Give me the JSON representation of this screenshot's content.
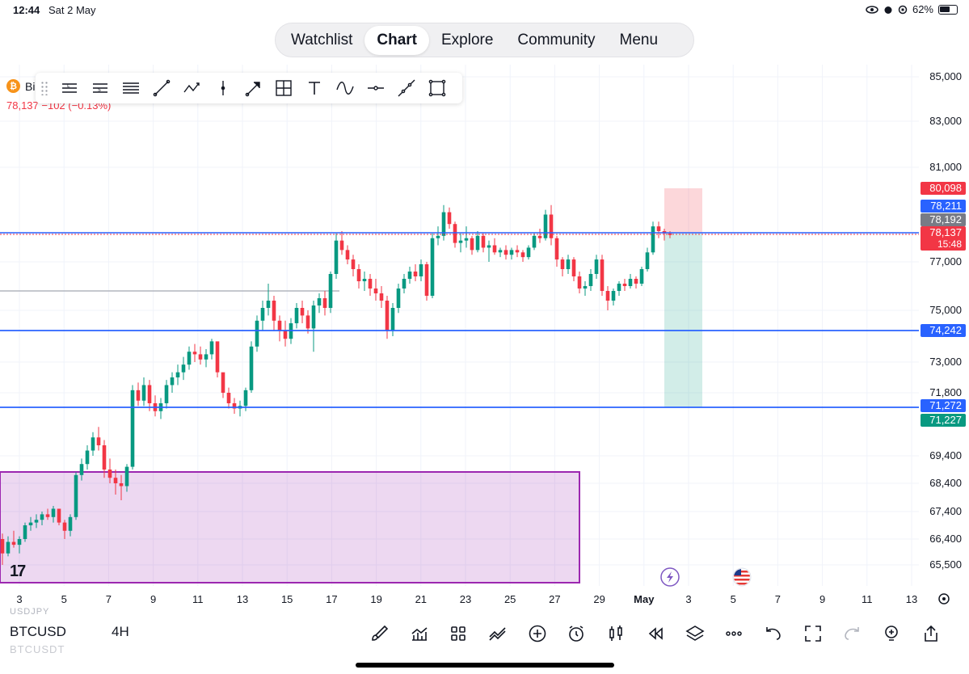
{
  "status_bar": {
    "time": "12:44",
    "date": "Sat 2 May",
    "battery": "62%"
  },
  "nav": {
    "tabs": [
      {
        "label": "Watchlist",
        "active": false
      },
      {
        "label": "Chart",
        "active": true
      },
      {
        "label": "Explore",
        "active": false
      },
      {
        "label": "Community",
        "active": false
      },
      {
        "label": "Menu",
        "active": false
      }
    ]
  },
  "symbol_header": {
    "name": "Bi",
    "price_change": "78,137 −102 (−0.13%)"
  },
  "drawing_tools": [
    "long-position-icon",
    "short-position-icon",
    "horizontal-lines-icon",
    "trend-line-icon",
    "path-icon",
    "vertical-line-icon",
    "arrow-icon",
    "cross-line-icon",
    "text-icon",
    "curve-icon",
    "horizontal-ray-icon",
    "extended-line-icon",
    "rectangle-icon"
  ],
  "bottom_bar": {
    "symbol": "BTCUSD",
    "interval": "4H",
    "ghost_top": "USDJPY",
    "ghost_bottom": "BTCUSDT",
    "tools": [
      "brush-icon",
      "indicators-icon",
      "templates-icon",
      "compare-icon",
      "add-icon",
      "alert-icon",
      "candle-type-icon",
      "replay-icon",
      "layers-icon",
      "more-icon",
      "undo-icon",
      "fullscreen-icon",
      "redo-icon",
      "object-tree-icon",
      "share-icon"
    ]
  },
  "chart_data": {
    "type": "candlestick",
    "symbol": "BTCUSD",
    "interval": "4H",
    "y_axis_ticks": [
      "85,000",
      "83,000",
      "81,000",
      "77,000",
      "75,000",
      "73,000",
      "71,800",
      "69,400",
      "68,400",
      "67,400",
      "66,400",
      "65,500"
    ],
    "x_axis_ticks": [
      "3",
      "5",
      "7",
      "9",
      "11",
      "13",
      "15",
      "17",
      "19",
      "21",
      "23",
      "25",
      "27",
      "29",
      "May",
      "3",
      "5",
      "7",
      "9",
      "11",
      "13"
    ],
    "price_labels": [
      {
        "value": "80,098",
        "color": "#f23645"
      },
      {
        "value": "78,211",
        "color": "#2962ff"
      },
      {
        "value": "78,192",
        "color": "#787b86"
      },
      {
        "value": "78,137",
        "countdown": "15:48",
        "color": "#f23645"
      },
      {
        "value": "74,242",
        "color": "#2962ff"
      },
      {
        "value": "71,272",
        "color": "#2962ff"
      },
      {
        "value": "71,227",
        "color": "#089981"
      }
    ],
    "horizontal_lines": [
      78211,
      74242,
      71272
    ],
    "gray_line": 76000,
    "position": {
      "type": "short",
      "entry": 78192,
      "stop": 80098,
      "target": 71227
    },
    "zone": {
      "top": 68900,
      "bottom": 64500,
      "color": "#9c27b0"
    },
    "ylim": [
      65000,
      85500
    ],
    "candles_ohlc": [
      [
        66400,
        66600,
        65500,
        65900
      ],
      [
        65900,
        66500,
        65800,
        66300
      ],
      [
        66300,
        66700,
        66100,
        66200
      ],
      [
        66200,
        66500,
        65900,
        66400
      ],
      [
        66400,
        67000,
        66300,
        66900
      ],
      [
        66900,
        67200,
        66700,
        67000
      ],
      [
        67000,
        67300,
        66800,
        67100
      ],
      [
        67100,
        67400,
        66900,
        67300
      ],
      [
        67300,
        67500,
        67100,
        67200
      ],
      [
        67200,
        67600,
        67000,
        67500
      ],
      [
        67500,
        67400,
        66900,
        67000
      ],
      [
        67000,
        67100,
        66400,
        66700
      ],
      [
        66700,
        67300,
        66500,
        67200
      ],
      [
        67200,
        68800,
        67100,
        68700
      ],
      [
        68700,
        69300,
        68500,
        69100
      ],
      [
        69100,
        69800,
        68900,
        69600
      ],
      [
        69600,
        70300,
        69400,
        70100
      ],
      [
        70100,
        70500,
        69600,
        69800
      ],
      [
        69800,
        70000,
        68600,
        68900
      ],
      [
        68900,
        69300,
        68400,
        68600
      ],
      [
        68600,
        68900,
        68000,
        68400
      ],
      [
        68400,
        68700,
        67800,
        68300
      ],
      [
        68300,
        69100,
        68100,
        69000
      ],
      [
        69000,
        72100,
        68900,
        71900
      ],
      [
        71900,
        72200,
        71300,
        71500
      ],
      [
        71500,
        72400,
        71300,
        72100
      ],
      [
        72100,
        72300,
        71100,
        71400
      ],
      [
        71400,
        71700,
        70900,
        71100
      ],
      [
        71100,
        71600,
        70800,
        71400
      ],
      [
        71400,
        72300,
        71200,
        72100
      ],
      [
        72100,
        72600,
        71800,
        72400
      ],
      [
        72400,
        72900,
        72100,
        72600
      ],
      [
        72600,
        73200,
        72300,
        72900
      ],
      [
        72900,
        73600,
        72700,
        73400
      ],
      [
        73400,
        73700,
        73000,
        73300
      ],
      [
        73300,
        73600,
        72900,
        73100
      ],
      [
        73100,
        73500,
        72800,
        73300
      ],
      [
        73300,
        73900,
        73100,
        73800
      ],
      [
        73800,
        73700,
        72400,
        72600
      ],
      [
        72600,
        72400,
        71600,
        71800
      ],
      [
        71800,
        72000,
        71200,
        71400
      ],
      [
        71400,
        71600,
        71000,
        71200
      ],
      [
        71200,
        71500,
        70900,
        71300
      ],
      [
        71300,
        72000,
        71100,
        71900
      ],
      [
        71900,
        73800,
        71800,
        73600
      ],
      [
        73600,
        74800,
        73400,
        74600
      ],
      [
        74600,
        75400,
        74200,
        75100
      ],
      [
        75100,
        76100,
        74800,
        75400
      ],
      [
        75400,
        75600,
        74200,
        74600
      ],
      [
        74600,
        74800,
        73800,
        74200
      ],
      [
        74200,
        74600,
        73600,
        73900
      ],
      [
        73900,
        74700,
        73700,
        74500
      ],
      [
        74500,
        75300,
        74300,
        75100
      ],
      [
        75100,
        75400,
        74500,
        74800
      ],
      [
        74800,
        75000,
        74100,
        74300
      ],
      [
        74300,
        75400,
        73400,
        75200
      ],
      [
        75200,
        75700,
        74900,
        75500
      ],
      [
        75500,
        75800,
        74800,
        75100
      ],
      [
        75100,
        76600,
        74900,
        76500
      ],
      [
        76500,
        78200,
        76300,
        77900
      ],
      [
        77900,
        78300,
        77300,
        77500
      ],
      [
        77500,
        77700,
        76900,
        77100
      ],
      [
        77100,
        77300,
        76400,
        76700
      ],
      [
        76700,
        76900,
        75900,
        76200
      ],
      [
        76200,
        76600,
        75800,
        76300
      ],
      [
        76300,
        76500,
        75600,
        75900
      ],
      [
        75900,
        76300,
        75400,
        75700
      ],
      [
        75700,
        76000,
        75100,
        75400
      ],
      [
        75400,
        75600,
        73900,
        74200
      ],
      [
        74200,
        75300,
        74000,
        75100
      ],
      [
        75100,
        76100,
        74900,
        75900
      ],
      [
        75900,
        76500,
        75700,
        76300
      ],
      [
        76300,
        76800,
        76100,
        76600
      ],
      [
        76600,
        76900,
        76200,
        76400
      ],
      [
        76400,
        77100,
        76200,
        76900
      ],
      [
        76900,
        77000,
        75400,
        75600
      ],
      [
        75600,
        78200,
        75500,
        78000
      ],
      [
        78000,
        78500,
        77700,
        78100
      ],
      [
        78100,
        79400,
        77900,
        79100
      ],
      [
        79100,
        79300,
        78400,
        78600
      ],
      [
        78600,
        78700,
        77600,
        77800
      ],
      [
        77800,
        78200,
        77400,
        77900
      ],
      [
        77900,
        78500,
        77600,
        78000
      ],
      [
        78000,
        78100,
        77300,
        77500
      ],
      [
        77500,
        78300,
        77400,
        78100
      ],
      [
        78100,
        78200,
        77400,
        77600
      ],
      [
        77600,
        77900,
        77000,
        77700
      ],
      [
        77700,
        78000,
        77300,
        77400
      ],
      [
        77400,
        77600,
        77200,
        77500
      ],
      [
        77500,
        77700,
        77100,
        77300
      ],
      [
        77300,
        77600,
        77100,
        77500
      ],
      [
        77500,
        77700,
        77200,
        77400
      ],
      [
        77400,
        77500,
        77000,
        77200
      ],
      [
        77200,
        77700,
        77100,
        77600
      ],
      [
        77600,
        78200,
        77500,
        78100
      ],
      [
        78100,
        78400,
        77800,
        78000
      ],
      [
        78000,
        79200,
        77900,
        79000
      ],
      [
        79000,
        79400,
        77700,
        78000
      ],
      [
        78000,
        78100,
        76800,
        77100
      ],
      [
        77100,
        77200,
        76400,
        76700
      ],
      [
        76700,
        77300,
        76500,
        77100
      ],
      [
        77100,
        77200,
        76200,
        76400
      ],
      [
        76400,
        76600,
        75700,
        75900
      ],
      [
        75900,
        76200,
        75600,
        76000
      ],
      [
        76000,
        76700,
        75800,
        76500
      ],
      [
        76500,
        77300,
        76300,
        77100
      ],
      [
        77100,
        77300,
        75600,
        75800
      ],
      [
        75800,
        76000,
        75000,
        75400
      ],
      [
        75400,
        75900,
        75200,
        75800
      ],
      [
        75800,
        76200,
        75600,
        76100
      ],
      [
        76100,
        76300,
        75800,
        76000
      ],
      [
        76000,
        76500,
        75900,
        76300
      ],
      [
        76300,
        76400,
        75900,
        76100
      ],
      [
        76100,
        76800,
        76000,
        76700
      ],
      [
        76700,
        77600,
        76600,
        77400
      ],
      [
        77400,
        78700,
        77300,
        78500
      ],
      [
        78500,
        78700,
        78000,
        78300
      ],
      [
        78300,
        78400,
        77900,
        78200
      ],
      [
        78200,
        78300,
        78000,
        78137
      ]
    ]
  }
}
